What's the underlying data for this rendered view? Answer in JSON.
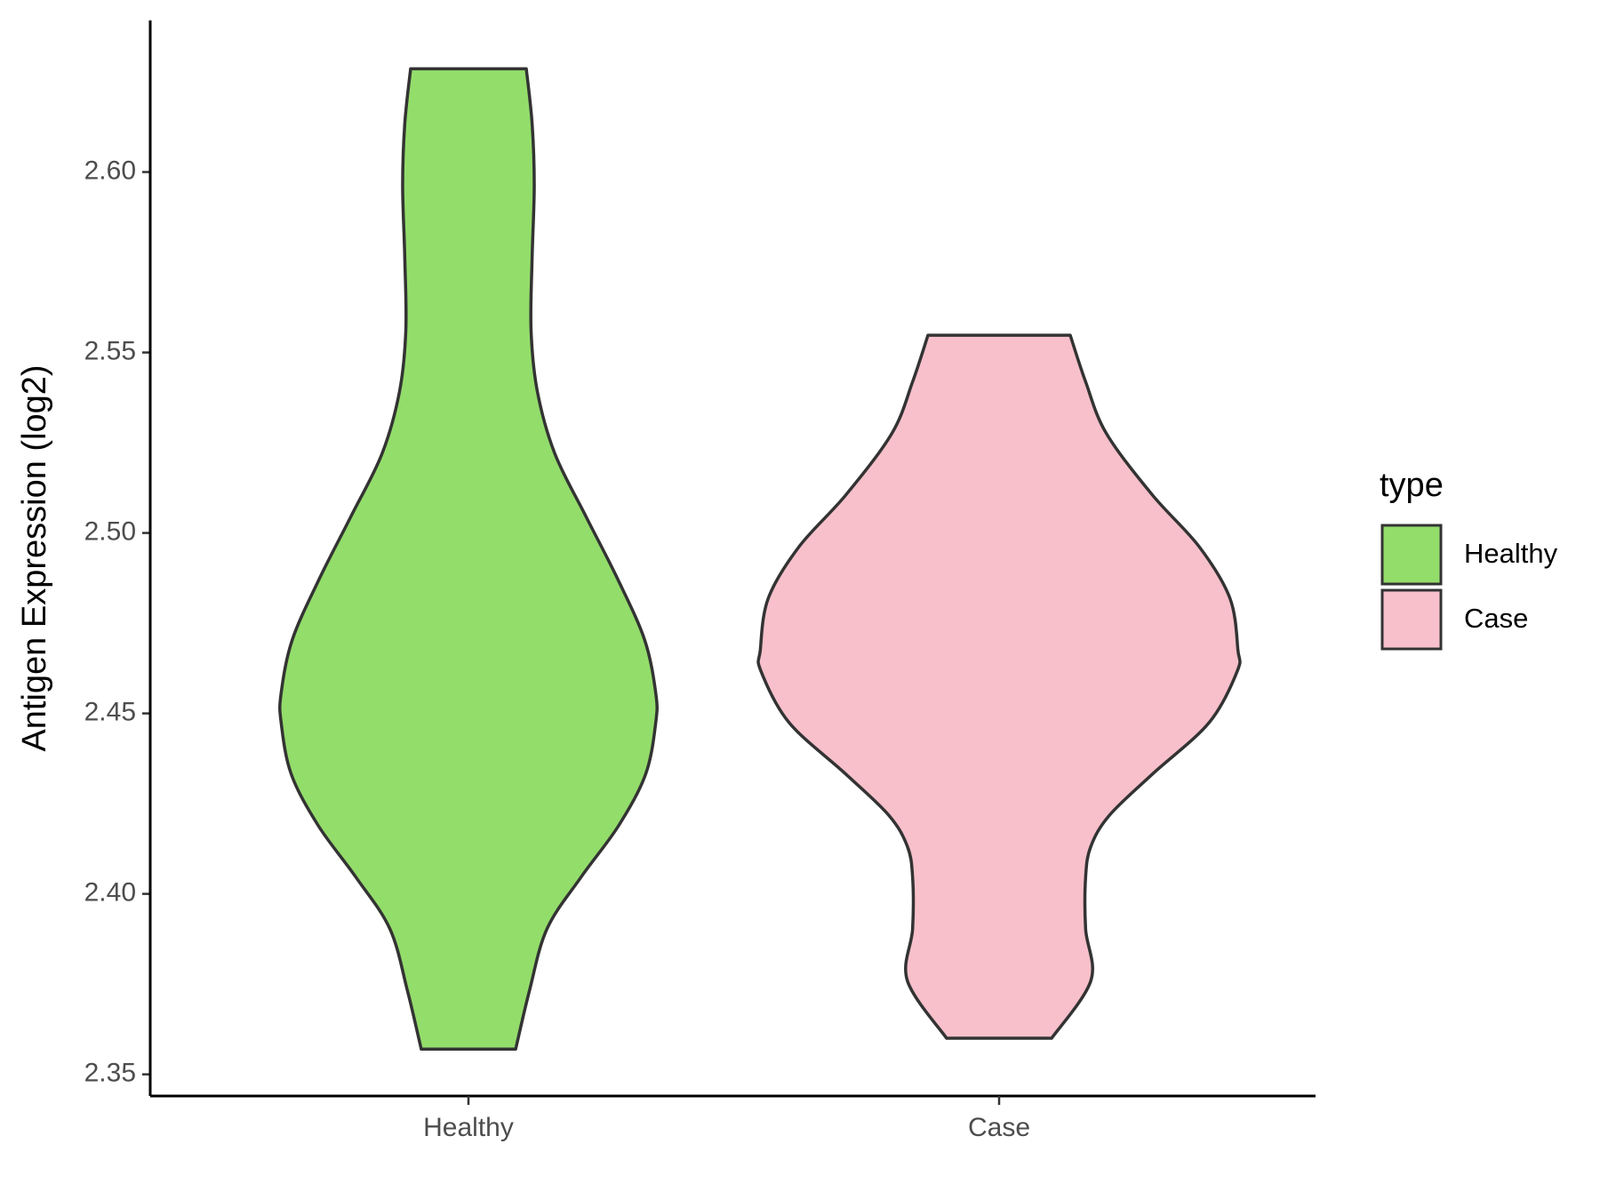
{
  "chart_data": {
    "type": "violin",
    "y_label": "Antigen Expression (log2)",
    "categories": [
      "Healthy",
      "Case"
    ],
    "legend_title": "type",
    "legend": "right",
    "ylim": [
      2.344,
      2.642
    ],
    "yticks": [
      2.35,
      {
        "value": 2.4,
        "label": "2.40"
      },
      2.45,
      {
        "value": 2.5,
        "label": "2.50"
      },
      2.55,
      {
        "value": 2.6,
        "label": "2.60"
      }
    ],
    "series": [
      {
        "name": "Healthy",
        "color": "#93dd6b",
        "y": [
          2.357,
          2.3732,
          2.3903,
          2.4046,
          2.4189,
          2.4332,
          2.4475,
          2.4556,
          2.4704,
          2.4876,
          2.5047,
          2.5219,
          2.5391,
          2.5562,
          2.5763,
          2.5963,
          2.6134,
          2.6286
        ],
        "width": [
          0.089,
          0.115,
          0.148,
          0.212,
          0.283,
          0.334,
          0.353,
          0.353,
          0.332,
          0.28,
          0.221,
          0.163,
          0.13,
          0.118,
          0.12,
          0.124,
          0.12,
          0.109
        ]
      },
      {
        "name": "Case",
        "color": "#f7c0cb",
        "y": [
          2.36,
          2.376,
          2.3903,
          2.4046,
          2.4132,
          2.4218,
          2.4332,
          2.4475,
          2.4618,
          2.4676,
          2.4819,
          2.4962,
          2.5105,
          2.5276,
          2.5419,
          2.5548
        ],
        "width": [
          0.099,
          0.173,
          0.163,
          0.163,
          0.173,
          0.208,
          0.289,
          0.396,
          0.449,
          0.45,
          0.435,
          0.377,
          0.289,
          0.202,
          0.163,
          0.134
        ]
      }
    ]
  }
}
